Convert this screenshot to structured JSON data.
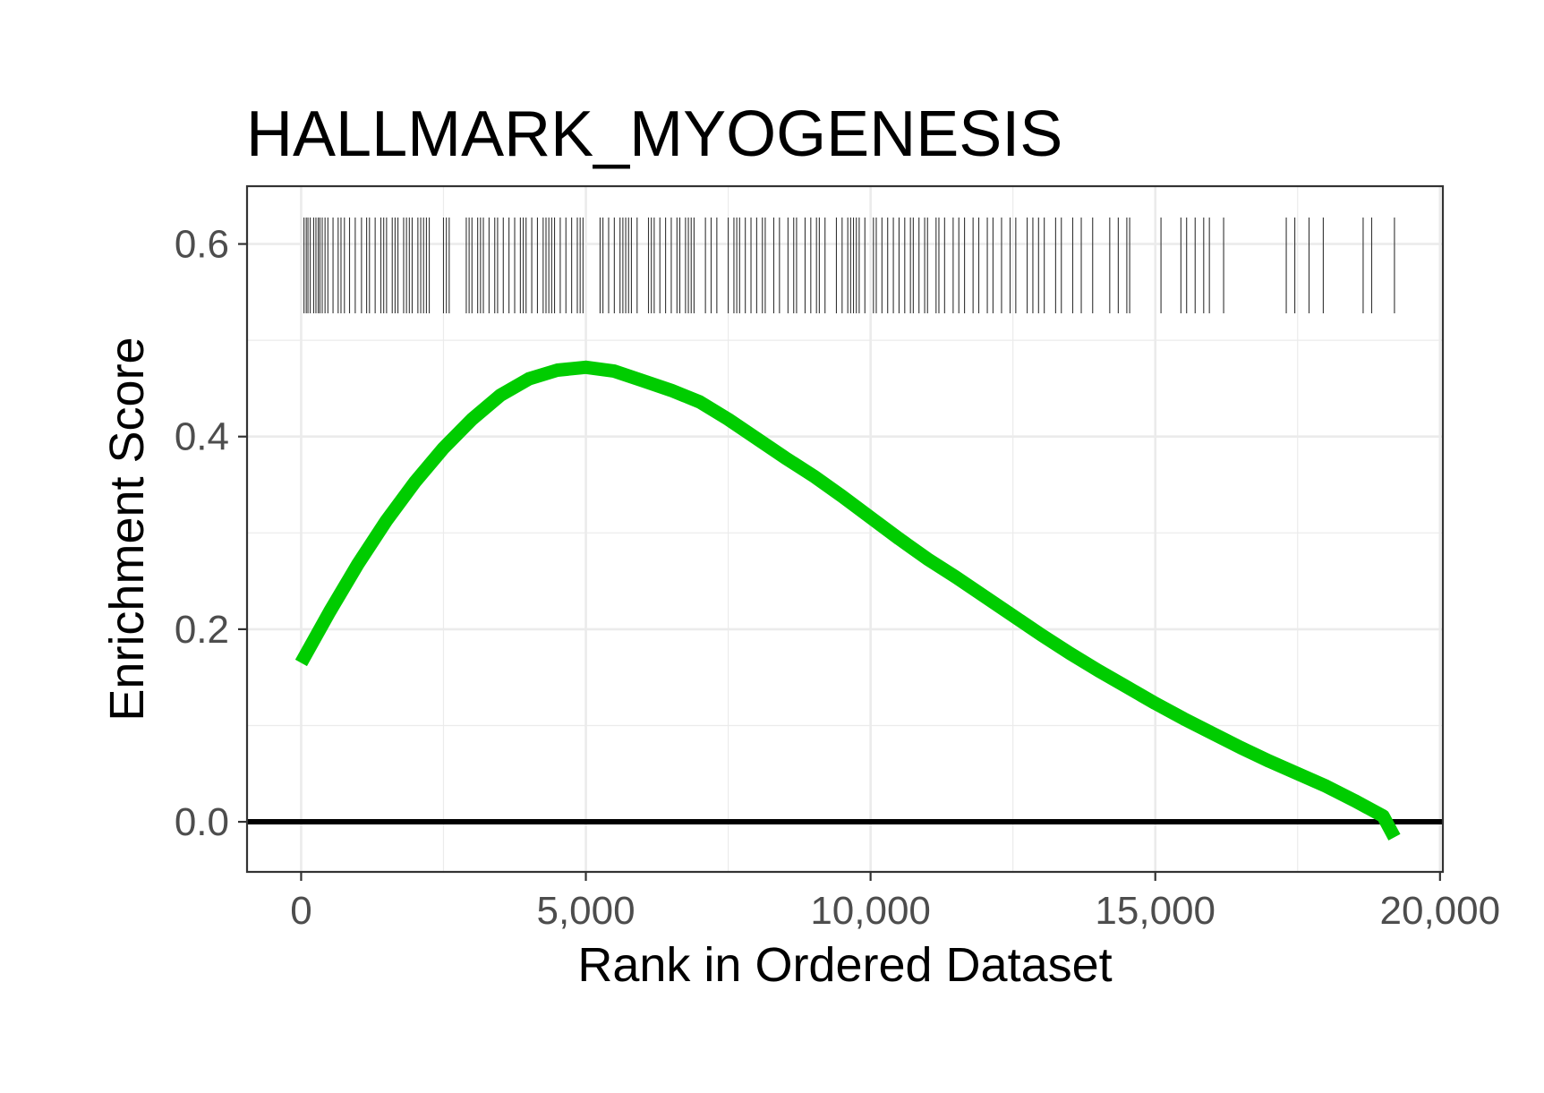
{
  "chart_data": {
    "type": "line",
    "title": "HALLMARK_MYOGENESIS",
    "xlabel": "Rank in Ordered Dataset",
    "ylabel": "Enrichment Score",
    "xlim": [
      -950,
      20050
    ],
    "ylim": [
      -0.052,
      0.66
    ],
    "x_ticks": [
      0,
      5000,
      10000,
      15000,
      20000
    ],
    "x_tick_labels": [
      "0",
      "5,000",
      "10,000",
      "15,000",
      "20,000"
    ],
    "y_ticks": [
      0.0,
      0.2,
      0.4,
      0.6
    ],
    "y_tick_labels": [
      "0.0",
      "0.2",
      "0.4",
      "0.6"
    ],
    "x_minor_ticks": [
      2500,
      7500,
      12500,
      17500
    ],
    "y_minor_ticks": [
      0.1,
      0.3,
      0.5
    ],
    "grid": true,
    "reference_line_y": 0,
    "series": [
      {
        "color": "#00cc00",
        "x": [
          0,
          500,
          1000,
          1500,
          2000,
          2500,
          3000,
          3500,
          4000,
          4500,
          5000,
          5500,
          6000,
          6500,
          7000,
          7500,
          8000,
          8500,
          9000,
          9500,
          10000,
          10500,
          11000,
          11500,
          12000,
          12500,
          13000,
          13500,
          14000,
          14500,
          15000,
          15500,
          16000,
          16500,
          17000,
          17500,
          18000,
          18500,
          19000,
          19200
        ],
        "y": [
          0.165,
          0.218,
          0.268,
          0.313,
          0.353,
          0.388,
          0.418,
          0.443,
          0.46,
          0.469,
          0.472,
          0.468,
          0.458,
          0.448,
          0.436,
          0.418,
          0.398,
          0.378,
          0.359,
          0.338,
          0.316,
          0.294,
          0.273,
          0.254,
          0.234,
          0.214,
          0.194,
          0.175,
          0.157,
          0.14,
          0.123,
          0.107,
          0.092,
          0.077,
          0.063,
          0.05,
          0.037,
          0.022,
          0.006,
          -0.016
        ]
      }
    ],
    "gene_hit_positions": [
      50,
      90,
      120,
      160,
      220,
      260,
      300,
      330,
      370,
      420,
      470,
      560,
      650,
      700,
      760,
      850,
      950,
      1060,
      1150,
      1200,
      1300,
      1400,
      1450,
      1500,
      1600,
      1650,
      1700,
      1800,
      1850,
      1900,
      1950,
      2050,
      2100,
      2150,
      2200,
      2250,
      2500,
      2550,
      2600,
      2900,
      2950,
      3000,
      3100,
      3150,
      3200,
      3300,
      3400,
      3450,
      3550,
      3650,
      3750,
      3850,
      3900,
      3950,
      4050,
      4150,
      4250,
      4300,
      4350,
      4400,
      4450,
      4550,
      4650,
      4750,
      4850,
      4900,
      4950,
      5250,
      5300,
      5400,
      5500,
      5600,
      5650,
      5700,
      5750,
      5800,
      5900,
      6100,
      6150,
      6200,
      6300,
      6400,
      6500,
      6600,
      6650,
      6750,
      6800,
      6850,
      6900,
      7100,
      7200,
      7300,
      7500,
      7600,
      7650,
      7700,
      7800,
      7900,
      8000,
      8100,
      8150,
      8300,
      8400,
      8550,
      8650,
      8700,
      8850,
      8950,
      9050,
      9100,
      9200,
      9400,
      9500,
      9600,
      9650,
      9700,
      9750,
      9800,
      9900,
      10050,
      10100,
      10200,
      10300,
      10400,
      10500,
      10600,
      10700,
      10750,
      10850,
      10950,
      11000,
      11150,
      11200,
      11300,
      11450,
      11550,
      11650,
      11800,
      11900,
      12050,
      12150,
      12300,
      12450,
      12550,
      12750,
      12850,
      12950,
      13050,
      13250,
      13350,
      13550,
      13700,
      13900,
      14200,
      14350,
      14500,
      14550,
      15100,
      15450,
      15550,
      15700,
      15850,
      15950,
      16200,
      17300,
      17450,
      17700,
      17950,
      18650,
      18800,
      19200
    ]
  }
}
